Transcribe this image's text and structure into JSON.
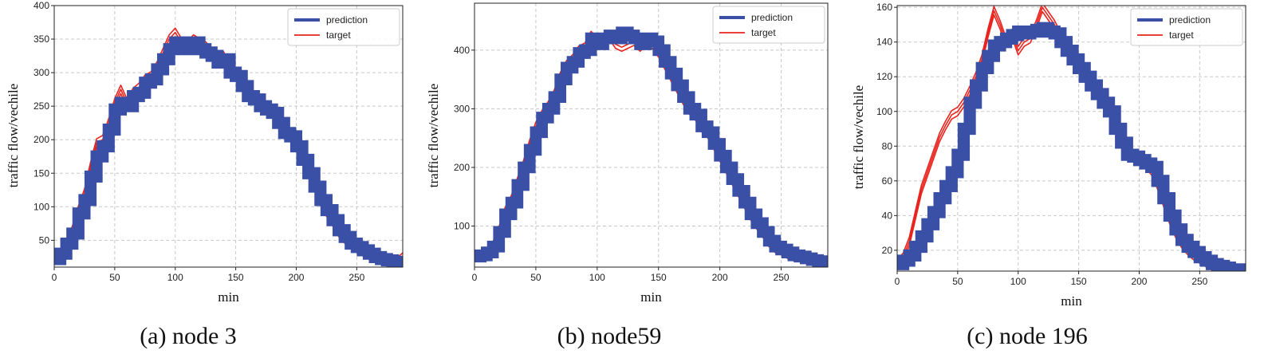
{
  "figure": {
    "background": "#ffffff",
    "prediction_color": "#3a4fa6",
    "target_color": "#e8241e"
  },
  "chart_data": [
    {
      "type": "line",
      "caption": "(a) node 3",
      "xlabel": "min",
      "ylabel": "traffic flow/vechile",
      "xlim": [
        0,
        288
      ],
      "ylim": [
        10,
        400
      ],
      "xticks": [
        0,
        50,
        100,
        150,
        200,
        250
      ],
      "yticks": [
        50,
        100,
        150,
        200,
        250,
        300,
        350,
        400
      ],
      "grid": true,
      "legend": "top-right",
      "band": 18,
      "series": [
        {
          "name": "prediction",
          "x": [
            0,
            5,
            10,
            15,
            20,
            25,
            30,
            35,
            40,
            45,
            50,
            55,
            60,
            65,
            70,
            75,
            80,
            85,
            90,
            95,
            100,
            105,
            110,
            115,
            120,
            125,
            130,
            135,
            140,
            145,
            150,
            155,
            160,
            165,
            170,
            175,
            180,
            185,
            190,
            195,
            200,
            205,
            210,
            215,
            220,
            225,
            230,
            235,
            240,
            245,
            250,
            255,
            260,
            265,
            270,
            275,
            280,
            285,
            288
          ],
          "y": [
            22,
            30,
            45,
            60,
            90,
            110,
            145,
            175,
            190,
            215,
            245,
            255,
            250,
            265,
            270,
            285,
            290,
            305,
            320,
            335,
            345,
            340,
            335,
            345,
            335,
            330,
            325,
            315,
            320,
            300,
            295,
            280,
            265,
            260,
            250,
            245,
            240,
            225,
            210,
            205,
            190,
            170,
            150,
            130,
            110,
            95,
            80,
            65,
            55,
            45,
            40,
            35,
            30,
            25,
            22,
            20,
            18,
            17,
            17
          ]
        },
        {
          "name": "target",
          "x": [
            0,
            5,
            10,
            15,
            20,
            25,
            30,
            35,
            40,
            45,
            50,
            55,
            60,
            65,
            70,
            75,
            80,
            85,
            90,
            95,
            100,
            105,
            110,
            115,
            120,
            125,
            130,
            135,
            140,
            145,
            150,
            155,
            160,
            165,
            170,
            175,
            180,
            185,
            190,
            195,
            200,
            205,
            210,
            215,
            220,
            225,
            230,
            235,
            240,
            245,
            250,
            255,
            260,
            265,
            270,
            275,
            280,
            285,
            288
          ],
          "y": [
            20,
            28,
            42,
            65,
            95,
            120,
            160,
            195,
            200,
            225,
            255,
            275,
            255,
            270,
            278,
            290,
            295,
            310,
            330,
            350,
            360,
            345,
            340,
            350,
            345,
            340,
            330,
            320,
            325,
            305,
            300,
            285,
            270,
            265,
            255,
            250,
            245,
            230,
            215,
            210,
            195,
            175,
            155,
            130,
            108,
            92,
            78,
            62,
            52,
            44,
            38,
            33,
            28,
            24,
            20,
            18,
            16,
            20,
            25
          ]
        }
      ]
    },
    {
      "type": "line",
      "caption": "(b) node59",
      "xlabel": "min",
      "ylabel": "traffic flow/vechile",
      "xlim": [
        0,
        288
      ],
      "ylim": [
        30,
        480
      ],
      "xticks": [
        0,
        50,
        100,
        150,
        200,
        250
      ],
      "yticks": [
        100,
        200,
        300,
        400
      ],
      "grid": true,
      "legend": "top-right",
      "band": 20,
      "series": [
        {
          "name": "prediction",
          "x": [
            0,
            5,
            10,
            15,
            20,
            25,
            30,
            35,
            40,
            45,
            50,
            55,
            60,
            65,
            70,
            75,
            80,
            85,
            90,
            95,
            100,
            105,
            110,
            115,
            120,
            125,
            130,
            135,
            140,
            145,
            150,
            155,
            160,
            165,
            170,
            175,
            180,
            185,
            190,
            195,
            200,
            205,
            210,
            215,
            220,
            225,
            230,
            235,
            240,
            245,
            250,
            255,
            260,
            265,
            270,
            275,
            280,
            285,
            288
          ],
          "y": [
            48,
            50,
            55,
            65,
            90,
            120,
            140,
            170,
            200,
            230,
            260,
            285,
            300,
            320,
            350,
            370,
            380,
            395,
            400,
            420,
            410,
            420,
            425,
            420,
            430,
            425,
            420,
            410,
            420,
            415,
            400,
            380,
            360,
            340,
            320,
            300,
            290,
            270,
            260,
            240,
            220,
            200,
            180,
            160,
            140,
            120,
            105,
            90,
            75,
            65,
            60,
            55,
            50,
            48,
            45,
            42,
            40,
            40,
            42
          ]
        },
        {
          "name": "target",
          "x": [
            0,
            5,
            10,
            15,
            20,
            25,
            30,
            35,
            40,
            45,
            50,
            55,
            60,
            65,
            70,
            75,
            80,
            85,
            90,
            95,
            100,
            105,
            110,
            115,
            120,
            125,
            130,
            135,
            140,
            145,
            150,
            155,
            160,
            165,
            170,
            175,
            180,
            185,
            190,
            195,
            200,
            205,
            210,
            215,
            220,
            225,
            230,
            235,
            240,
            245,
            250,
            255,
            260,
            265,
            270,
            275,
            280,
            285,
            288
          ],
          "y": [
            46,
            48,
            54,
            66,
            92,
            125,
            145,
            175,
            205,
            240,
            270,
            290,
            305,
            325,
            355,
            375,
            385,
            400,
            405,
            425,
            415,
            420,
            425,
            410,
            405,
            410,
            415,
            405,
            415,
            410,
            395,
            375,
            355,
            335,
            315,
            298,
            288,
            268,
            258,
            238,
            218,
            198,
            178,
            158,
            138,
            118,
            102,
            88,
            72,
            62,
            58,
            52,
            48,
            46,
            44,
            40,
            38,
            38,
            40
          ]
        }
      ]
    },
    {
      "type": "line",
      "caption": "(c) node 196",
      "xlabel": "min",
      "ylabel": "traffic flow/vechile",
      "xlim": [
        0,
        288
      ],
      "ylim": [
        8,
        161
      ],
      "xticks": [
        0,
        50,
        100,
        150,
        200,
        250
      ],
      "yticks": [
        20,
        40,
        60,
        80,
        100,
        120,
        140,
        160
      ],
      "grid": true,
      "legend": "top-right",
      "band": 7,
      "series": [
        {
          "name": "prediction",
          "x": [
            0,
            5,
            10,
            15,
            20,
            25,
            30,
            35,
            40,
            45,
            50,
            55,
            60,
            65,
            70,
            75,
            80,
            85,
            90,
            95,
            100,
            105,
            110,
            115,
            120,
            125,
            130,
            135,
            140,
            145,
            150,
            155,
            160,
            165,
            170,
            175,
            180,
            185,
            190,
            195,
            200,
            205,
            210,
            215,
            220,
            225,
            230,
            235,
            240,
            245,
            250,
            255,
            260,
            265,
            270,
            275,
            280,
            285,
            288
          ],
          "y": [
            12,
            14,
            17,
            22,
            28,
            35,
            42,
            50,
            57,
            65,
            75,
            90,
            105,
            115,
            125,
            132,
            138,
            140,
            142,
            144,
            146,
            145,
            146,
            147,
            148,
            146,
            145,
            140,
            135,
            130,
            125,
            120,
            115,
            110,
            105,
            100,
            90,
            82,
            75,
            74,
            72,
            70,
            68,
            60,
            50,
            40,
            32,
            26,
            22,
            19,
            16,
            14,
            12,
            11,
            10,
            9,
            9,
            9,
            9
          ]
        },
        {
          "name": "target",
          "x": [
            0,
            5,
            10,
            15,
            20,
            25,
            30,
            35,
            40,
            45,
            50,
            55,
            60,
            65,
            70,
            75,
            80,
            85,
            90,
            95,
            100,
            105,
            110,
            115,
            120,
            125,
            130,
            135,
            140,
            145,
            150,
            155,
            160,
            165,
            170,
            175,
            180,
            185,
            190,
            195,
            200,
            205,
            210,
            215,
            220,
            225,
            230,
            235,
            240,
            245,
            250,
            255,
            260,
            265,
            270,
            275,
            280,
            285,
            288
          ],
          "y": [
            12,
            16,
            25,
            40,
            55,
            65,
            75,
            85,
            92,
            98,
            100,
            105,
            112,
            120,
            130,
            145,
            158,
            150,
            140,
            145,
            135,
            140,
            142,
            150,
            160,
            155,
            150,
            143,
            138,
            132,
            126,
            120,
            115,
            110,
            105,
            100,
            92,
            84,
            77,
            75,
            72,
            70,
            66,
            58,
            48,
            38,
            30,
            24,
            20,
            17,
            15,
            13,
            11,
            10,
            9,
            9,
            8,
            8,
            8
          ]
        }
      ]
    }
  ]
}
